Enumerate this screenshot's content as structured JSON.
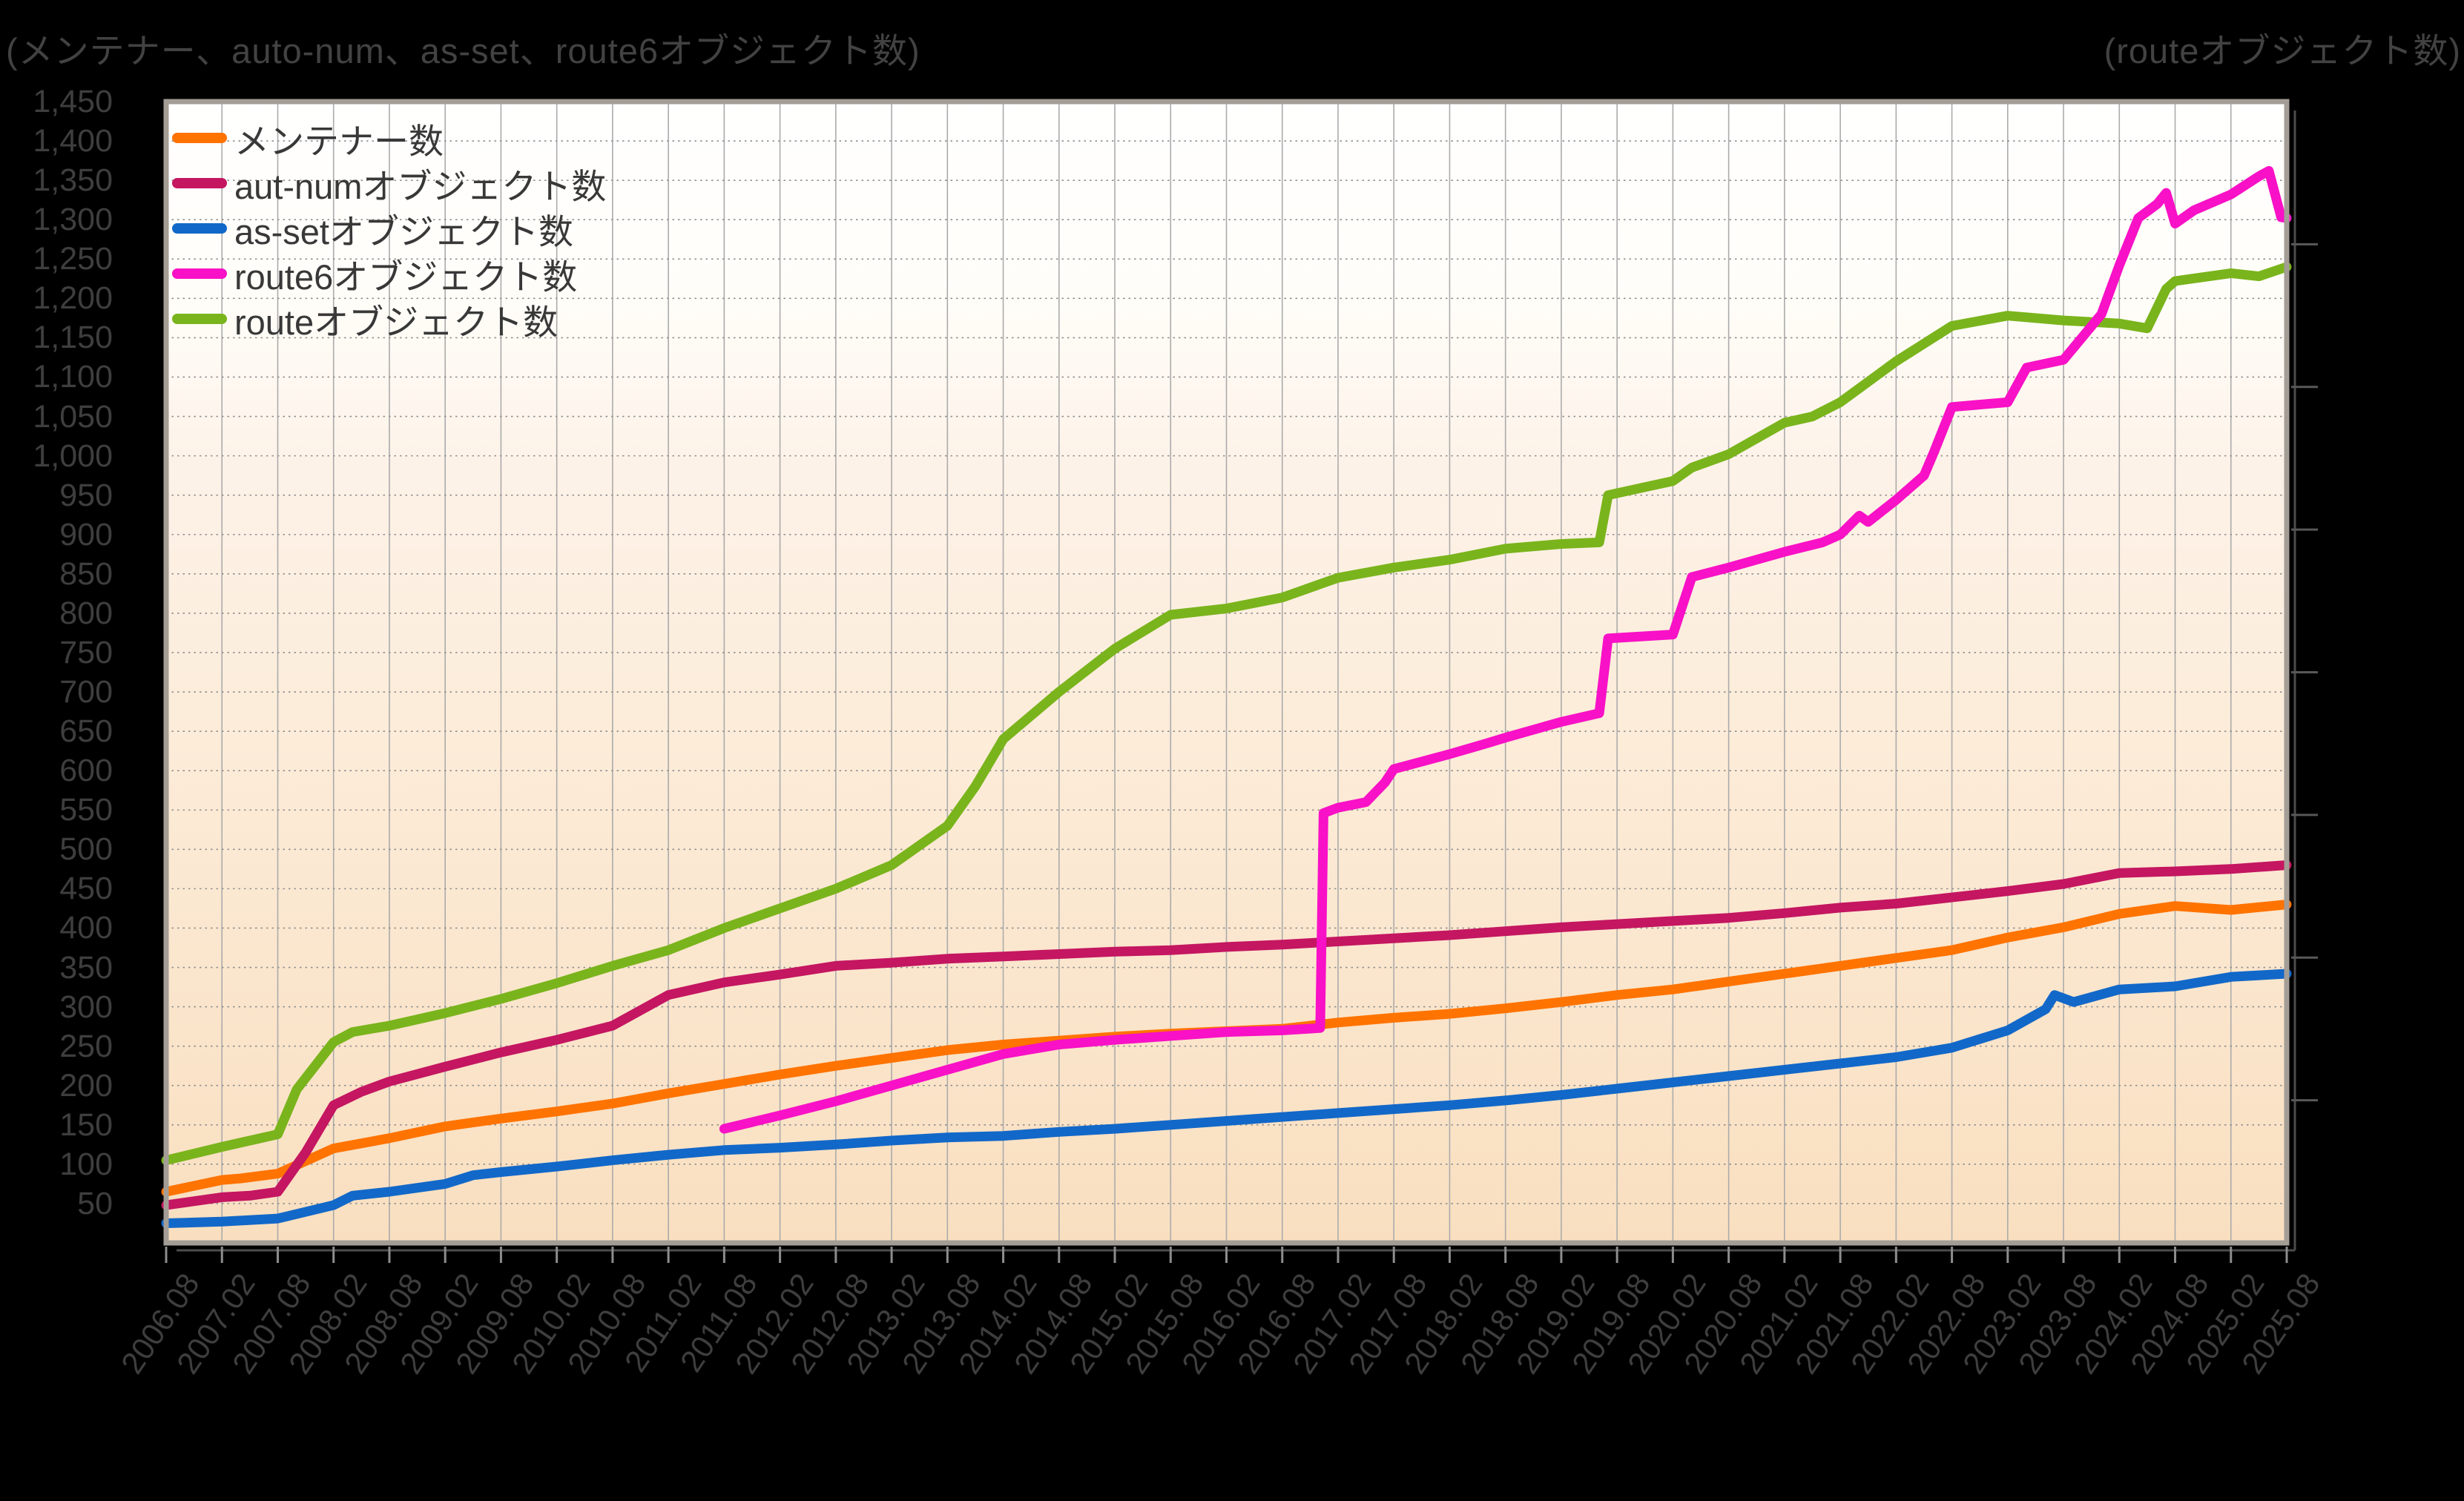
{
  "titles": {
    "left": "(メンテナー、auto-num、as-set、route6オブジェクト数)",
    "right": "(routeオブジェクト数)"
  },
  "legend": [
    {
      "label": "メンテナー数",
      "color": "#ff7300"
    },
    {
      "label": "aut-numオブジェクト数",
      "color": "#c41661"
    },
    {
      "label": "as-setオブジェクト数",
      "color": "#1268c8"
    },
    {
      "label": "route6オブジェクト数",
      "color": "#f811c6"
    },
    {
      "label": "routeオブジェクト数",
      "color": "#7ab41c"
    }
  ],
  "axes": {
    "x": {
      "tick_labels": [
        "2006.08",
        "2007.02",
        "2007.08",
        "2008.02",
        "2008.08",
        "2009.02",
        "2009.08",
        "2010.02",
        "2010.08",
        "2011.02",
        "2011.08",
        "2012.02",
        "2012.08",
        "2013.02",
        "2013.08",
        "2014.02",
        "2014.08",
        "2015.02",
        "2015.08",
        "2016.02",
        "2016.08",
        "2017.02",
        "2017.08",
        "2018.02",
        "2018.08",
        "2019.02",
        "2019.08",
        "2020.02",
        "2020.08",
        "2021.02",
        "2021.08",
        "2022.02",
        "2022.08",
        "2023.02",
        "2023.08",
        "2024.02",
        "2024.08",
        "2025.02",
        "2025.08"
      ]
    },
    "y_left": {
      "min": 0,
      "max": 1450,
      "step": 50,
      "first_label": 50,
      "label_format": "thousands-comma"
    },
    "y_right": {
      "title": "(routeオブジェクト数)",
      "tick_divisions": 8,
      "labels_visible": false
    }
  },
  "chart_data": {
    "type": "line",
    "x_unit": "year (.08 = February, .58 = August)",
    "xlim": [
      2006.58,
      2025.58
    ],
    "ylim": [
      0,
      1450
    ],
    "grid": {
      "vertical": "solid, every 6 months",
      "horizontal": "dotted, every 50 units"
    },
    "legend_position": "top-left inside plot",
    "plot_background": "white-to-peach vertical gradient",
    "series": [
      {
        "name": "メンテナー数",
        "color": "#ff7300",
        "points": [
          [
            2006.58,
            65
          ],
          [
            2007.08,
            80
          ],
          [
            2007.25,
            82
          ],
          [
            2007.58,
            88
          ],
          [
            2008.08,
            120
          ],
          [
            2008.58,
            133
          ],
          [
            2009.08,
            148
          ],
          [
            2009.58,
            158
          ],
          [
            2010.08,
            167
          ],
          [
            2010.58,
            177
          ],
          [
            2011.08,
            190
          ],
          [
            2011.58,
            202
          ],
          [
            2012.08,
            214
          ],
          [
            2012.58,
            225
          ],
          [
            2013.08,
            235
          ],
          [
            2013.58,
            245
          ],
          [
            2014.08,
            252
          ],
          [
            2014.58,
            257
          ],
          [
            2015.08,
            262
          ],
          [
            2015.58,
            266
          ],
          [
            2016.08,
            269
          ],
          [
            2016.58,
            272
          ],
          [
            2017.08,
            280
          ],
          [
            2017.58,
            286
          ],
          [
            2018.08,
            291
          ],
          [
            2018.58,
            298
          ],
          [
            2019.08,
            306
          ],
          [
            2019.58,
            315
          ],
          [
            2020.08,
            322
          ],
          [
            2020.58,
            332
          ],
          [
            2021.08,
            342
          ],
          [
            2021.58,
            352
          ],
          [
            2022.08,
            362
          ],
          [
            2022.58,
            372
          ],
          [
            2023.08,
            388
          ],
          [
            2023.58,
            401
          ],
          [
            2024.08,
            418
          ],
          [
            2024.58,
            428
          ],
          [
            2025.08,
            423
          ],
          [
            2025.58,
            430
          ]
        ]
      },
      {
        "name": "aut-numオブジェクト数",
        "color": "#c41661",
        "points": [
          [
            2006.58,
            48
          ],
          [
            2007.08,
            58
          ],
          [
            2007.33,
            60
          ],
          [
            2007.58,
            65
          ],
          [
            2007.83,
            115
          ],
          [
            2008.08,
            175
          ],
          [
            2008.33,
            192
          ],
          [
            2008.58,
            205
          ],
          [
            2009.08,
            224
          ],
          [
            2009.58,
            242
          ],
          [
            2010.08,
            258
          ],
          [
            2010.58,
            276
          ],
          [
            2011.08,
            315
          ],
          [
            2011.58,
            331
          ],
          [
            2012.08,
            341
          ],
          [
            2012.58,
            352
          ],
          [
            2013.08,
            356
          ],
          [
            2013.58,
            361
          ],
          [
            2014.08,
            364
          ],
          [
            2014.58,
            367
          ],
          [
            2015.08,
            370
          ],
          [
            2015.58,
            372
          ],
          [
            2016.08,
            376
          ],
          [
            2016.58,
            379
          ],
          [
            2017.08,
            383
          ],
          [
            2017.58,
            387
          ],
          [
            2018.08,
            391
          ],
          [
            2018.58,
            396
          ],
          [
            2019.08,
            401
          ],
          [
            2019.58,
            405
          ],
          [
            2020.08,
            409
          ],
          [
            2020.58,
            413
          ],
          [
            2021.08,
            419
          ],
          [
            2021.58,
            426
          ],
          [
            2022.08,
            431
          ],
          [
            2022.58,
            439
          ],
          [
            2023.08,
            447
          ],
          [
            2023.58,
            456
          ],
          [
            2024.08,
            470
          ],
          [
            2024.58,
            472
          ],
          [
            2025.08,
            475
          ],
          [
            2025.58,
            480
          ]
        ]
      },
      {
        "name": "as-setオブジェクト数",
        "color": "#1268c8",
        "points": [
          [
            2006.58,
            25
          ],
          [
            2007.08,
            27
          ],
          [
            2007.58,
            31
          ],
          [
            2008.08,
            48
          ],
          [
            2008.25,
            60
          ],
          [
            2008.58,
            65
          ],
          [
            2009.08,
            75
          ],
          [
            2009.33,
            86
          ],
          [
            2009.58,
            90
          ],
          [
            2010.08,
            97
          ],
          [
            2010.58,
            105
          ],
          [
            2011.08,
            112
          ],
          [
            2011.58,
            118
          ],
          [
            2012.08,
            121
          ],
          [
            2012.58,
            125
          ],
          [
            2013.08,
            130
          ],
          [
            2013.58,
            134
          ],
          [
            2014.08,
            136
          ],
          [
            2014.58,
            141
          ],
          [
            2015.08,
            145
          ],
          [
            2015.58,
            150
          ],
          [
            2016.08,
            155
          ],
          [
            2016.58,
            160
          ],
          [
            2017.08,
            165
          ],
          [
            2017.58,
            170
          ],
          [
            2018.08,
            175
          ],
          [
            2018.58,
            181
          ],
          [
            2019.08,
            188
          ],
          [
            2019.58,
            196
          ],
          [
            2020.08,
            204
          ],
          [
            2020.58,
            212
          ],
          [
            2021.08,
            220
          ],
          [
            2021.58,
            228
          ],
          [
            2022.08,
            236
          ],
          [
            2022.58,
            248
          ],
          [
            2023.08,
            270
          ],
          [
            2023.42,
            297
          ],
          [
            2023.5,
            315
          ],
          [
            2023.67,
            306
          ],
          [
            2024.08,
            322
          ],
          [
            2024.58,
            326
          ],
          [
            2025.08,
            338
          ],
          [
            2025.58,
            342
          ]
        ]
      },
      {
        "name": "route6オブジェクト数",
        "color": "#f811c6",
        "points": [
          [
            2011.58,
            145
          ],
          [
            2012.08,
            162
          ],
          [
            2012.58,
            180
          ],
          [
            2013.08,
            200
          ],
          [
            2013.58,
            220
          ],
          [
            2014.08,
            240
          ],
          [
            2014.58,
            252
          ],
          [
            2015.08,
            258
          ],
          [
            2015.58,
            263
          ],
          [
            2016.08,
            268
          ],
          [
            2016.58,
            270
          ],
          [
            2016.92,
            273
          ],
          [
            2016.95,
            546
          ],
          [
            2017.08,
            553
          ],
          [
            2017.33,
            560
          ],
          [
            2017.5,
            585
          ],
          [
            2017.58,
            602
          ],
          [
            2018.08,
            621
          ],
          [
            2018.42,
            635
          ],
          [
            2018.58,
            642
          ],
          [
            2019.08,
            662
          ],
          [
            2019.42,
            673
          ],
          [
            2019.5,
            768
          ],
          [
            2020.08,
            773
          ],
          [
            2020.25,
            846
          ],
          [
            2020.58,
            858
          ],
          [
            2021.08,
            878
          ],
          [
            2021.42,
            890
          ],
          [
            2021.58,
            900
          ],
          [
            2021.75,
            924
          ],
          [
            2021.83,
            916
          ],
          [
            2022.08,
            944
          ],
          [
            2022.33,
            975
          ],
          [
            2022.42,
            1005
          ],
          [
            2022.58,
            1062
          ],
          [
            2023.08,
            1068
          ],
          [
            2023.25,
            1112
          ],
          [
            2023.58,
            1122
          ],
          [
            2023.92,
            1180
          ],
          [
            2024.08,
            1242
          ],
          [
            2024.25,
            1302
          ],
          [
            2024.42,
            1320
          ],
          [
            2024.5,
            1334
          ],
          [
            2024.58,
            1295
          ],
          [
            2024.75,
            1312
          ],
          [
            2025.08,
            1332
          ],
          [
            2025.33,
            1355
          ],
          [
            2025.42,
            1362
          ],
          [
            2025.53,
            1303
          ],
          [
            2025.58,
            1302
          ]
        ]
      },
      {
        "name": "routeオブジェクト数",
        "color": "#7ab41c",
        "points": [
          [
            2006.58,
            105
          ],
          [
            2007.08,
            122
          ],
          [
            2007.58,
            138
          ],
          [
            2007.75,
            195
          ],
          [
            2008.08,
            255
          ],
          [
            2008.25,
            268
          ],
          [
            2008.58,
            276
          ],
          [
            2009.08,
            292
          ],
          [
            2009.58,
            310
          ],
          [
            2010.08,
            330
          ],
          [
            2010.58,
            352
          ],
          [
            2011.08,
            372
          ],
          [
            2011.58,
            400
          ],
          [
            2012.08,
            425
          ],
          [
            2012.58,
            450
          ],
          [
            2013.08,
            480
          ],
          [
            2013.58,
            530
          ],
          [
            2013.83,
            580
          ],
          [
            2014.08,
            640
          ],
          [
            2014.58,
            700
          ],
          [
            2015.08,
            755
          ],
          [
            2015.58,
            798
          ],
          [
            2016.08,
            806
          ],
          [
            2016.58,
            820
          ],
          [
            2017.08,
            845
          ],
          [
            2017.58,
            858
          ],
          [
            2018.08,
            868
          ],
          [
            2018.58,
            882
          ],
          [
            2019.08,
            888
          ],
          [
            2019.42,
            890
          ],
          [
            2019.5,
            950
          ],
          [
            2020.08,
            968
          ],
          [
            2020.25,
            985
          ],
          [
            2020.58,
            1002
          ],
          [
            2021.08,
            1042
          ],
          [
            2021.33,
            1050
          ],
          [
            2021.58,
            1068
          ],
          [
            2022.08,
            1120
          ],
          [
            2022.58,
            1165
          ],
          [
            2023.08,
            1178
          ],
          [
            2023.58,
            1172
          ],
          [
            2024.08,
            1168
          ],
          [
            2024.33,
            1162
          ],
          [
            2024.5,
            1212
          ],
          [
            2024.58,
            1222
          ],
          [
            2025.08,
            1232
          ],
          [
            2025.33,
            1228
          ],
          [
            2025.58,
            1240
          ]
        ]
      }
    ]
  }
}
